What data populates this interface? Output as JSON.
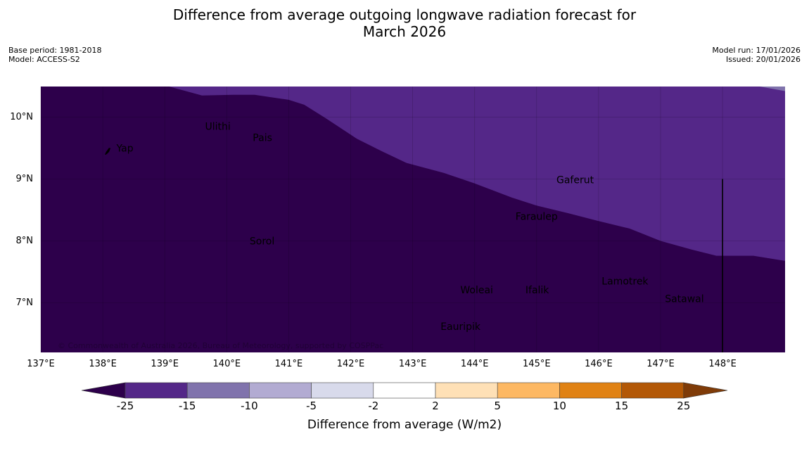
{
  "header": {
    "title_line1": "Difference from average outgoing longwave radiation forecast for",
    "title_line2": "March 2026",
    "base_period": "Base period: 1981-2018",
    "model": "Model: ACCESS-S2",
    "model_run": "Model run: 17/01/2026",
    "issued": "Issued: 20/01/2026"
  },
  "map": {
    "lon_range": [
      137.0,
      149.0
    ],
    "lat_range": [
      6.2,
      10.5
    ],
    "lon_ticks": [
      "137°E",
      "138°E",
      "139°E",
      "140°E",
      "141°E",
      "142°E",
      "143°E",
      "144°E",
      "145°E",
      "146°E",
      "147°E",
      "148°E"
    ],
    "lat_ticks": [
      "10°N",
      "9°N",
      "8°N",
      "7°N"
    ],
    "places": [
      {
        "name": "Yap",
        "lon": 138.22,
        "lat": 9.5
      },
      {
        "name": "Ulithi",
        "lon": 139.65,
        "lat": 9.85
      },
      {
        "name": "Pais",
        "lon": 140.42,
        "lat": 9.67
      },
      {
        "name": "Gaferut",
        "lon": 145.32,
        "lat": 8.99
      },
      {
        "name": "Faraulep",
        "lon": 144.66,
        "lat": 8.4
      },
      {
        "name": "Sorol",
        "lon": 140.37,
        "lat": 8.0
      },
      {
        "name": "Lamotrek",
        "lon": 146.05,
        "lat": 7.35
      },
      {
        "name": "Woleai",
        "lon": 143.77,
        "lat": 7.21
      },
      {
        "name": "Ifalik",
        "lon": 144.82,
        "lat": 7.21
      },
      {
        "name": "Satawal",
        "lon": 147.07,
        "lat": 7.07
      },
      {
        "name": "Eauripik",
        "lon": 143.45,
        "lat": 6.62
      }
    ],
    "copyright": "© Commonwealth of Australia 2026, Bureau of Meteorology, supported by COSPPac",
    "region_colors": {
      "below_25": "#2d004b",
      "m25_m15": "#542788",
      "m15_m10": "#8073ac"
    },
    "boundary_upper_band": [
      [
        139.07,
        10.5
      ],
      [
        139.6,
        10.35
      ],
      [
        140.1,
        10.36
      ],
      [
        140.45,
        10.36
      ],
      [
        141.0,
        10.28
      ],
      [
        141.25,
        10.2
      ],
      [
        141.6,
        9.98
      ],
      [
        142.1,
        9.65
      ],
      [
        142.5,
        9.45
      ],
      [
        142.9,
        9.26
      ],
      [
        143.5,
        9.1
      ],
      [
        144.0,
        8.93
      ],
      [
        144.6,
        8.7
      ],
      [
        145.0,
        8.57
      ],
      [
        145.5,
        8.45
      ],
      [
        146.0,
        8.32
      ],
      [
        146.5,
        8.2
      ],
      [
        147.0,
        8.0
      ],
      [
        147.5,
        7.86
      ],
      [
        147.9,
        7.76
      ],
      [
        148.5,
        7.76
      ],
      [
        149.0,
        7.68
      ]
    ],
    "boundary_top_right": [
      [
        148.6,
        10.5
      ],
      [
        149.0,
        10.42
      ]
    ],
    "marker_line": {
      "lon": 148.0,
      "lat_top": 9.0,
      "lat_bottom": 6.2
    }
  },
  "colorbar": {
    "label": "Difference from average (W/m2)",
    "ticks": [
      "-25",
      "-15",
      "-10",
      "-5",
      "-2",
      "2",
      "5",
      "10",
      "15",
      "25"
    ],
    "colors": [
      "#542788",
      "#8073ac",
      "#b2abd2",
      "#d8daeb",
      "#ffffff",
      "#fee0b6",
      "#fdb863",
      "#e08214",
      "#b35806"
    ],
    "under_color": "#2d004b",
    "over_color": "#7f3b08"
  }
}
